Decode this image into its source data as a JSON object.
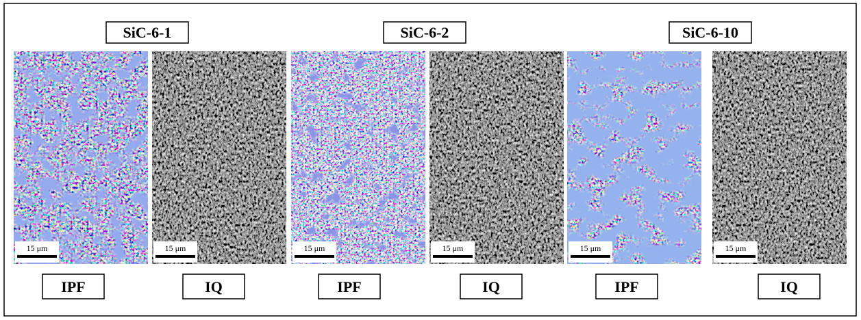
{
  "panels": [
    {
      "title": "SiC-6-1",
      "images": [
        {
          "label": "IPF",
          "scale_bar": "15 μm"
        },
        {
          "label": "IQ",
          "scale_bar": "15 μm"
        }
      ]
    },
    {
      "title": "SiC-6-2",
      "images": [
        {
          "label": "IPF",
          "scale_bar": "15 μm"
        },
        {
          "label": "IQ",
          "scale_bar": "15 μm"
        }
      ]
    },
    {
      "title": "SiC-6-10",
      "images": [
        {
          "label": "IPF",
          "scale_bar": "15 μm"
        },
        {
          "label": "IQ",
          "scale_bar": "15 μm"
        }
      ]
    }
  ]
}
